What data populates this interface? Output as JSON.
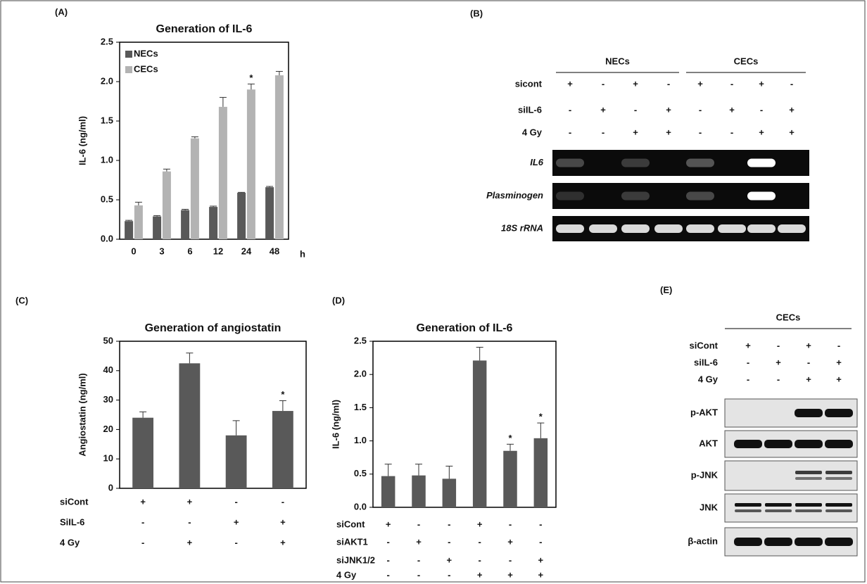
{
  "chart_data": [
    {
      "type": "bar",
      "panel_label": "(A)",
      "title": "Generation of IL-6",
      "y_label": "IL-6 (ng/ml)",
      "x_unit": "h",
      "categories": [
        "0",
        "3",
        "6",
        "12",
        "24",
        "48"
      ],
      "series": [
        {
          "name": "NECs",
          "color": "#595959",
          "values": [
            0.23,
            0.29,
            0.37,
            0.41,
            0.59,
            0.66
          ],
          "errors": [
            0.01,
            0.01,
            0.01,
            0.01,
            0.005,
            0.01
          ],
          "markers": [
            null,
            null,
            null,
            null,
            null,
            null
          ]
        },
        {
          "name": "CECs",
          "color": "#b3b3b3",
          "values": [
            0.43,
            0.86,
            1.28,
            1.68,
            1.9,
            2.08
          ],
          "errors": [
            0.04,
            0.03,
            0.02,
            0.12,
            0.07,
            0.05
          ],
          "markers": [
            null,
            null,
            null,
            null,
            "*",
            null
          ]
        }
      ],
      "ylim": [
        0,
        2.5
      ],
      "yticks": [
        {
          "value": 0,
          "label": "0.0"
        },
        {
          "value": 0.5,
          "label": "0.5"
        },
        {
          "value": 1,
          "label": "1.0"
        },
        {
          "value": 1.5,
          "label": "1.5"
        },
        {
          "value": 2,
          "label": "2.0"
        },
        {
          "value": 2.5,
          "label": "2.5"
        }
      ],
      "legend": "upper left"
    },
    {
      "type": "bar",
      "panel_label": "(C)",
      "title": "Generation of angiostatin",
      "y_label": "Angiostatin (ng/ml)",
      "categories": [
        null,
        null,
        null,
        null
      ],
      "values": [
        24,
        42.5,
        18,
        26.3
      ],
      "errors": [
        2,
        3.5,
        5,
        3.5
      ],
      "markers": [
        null,
        null,
        null,
        "*"
      ],
      "color": "#595959",
      "ylim": [
        0,
        50
      ],
      "yticks": [
        0,
        10,
        20,
        30,
        40,
        50
      ],
      "conditions": [
        {
          "label": "siCont",
          "signs": [
            "+",
            "+",
            "-",
            "-"
          ]
        },
        {
          "label": "SiIL-6",
          "signs": [
            "-",
            "-",
            "+",
            "+"
          ]
        },
        {
          "label": "4 Gy",
          "signs": [
            "-",
            "+",
            "-",
            "+"
          ]
        }
      ]
    },
    {
      "type": "bar",
      "panel_label": "(D)",
      "title": "Generation of IL-6",
      "y_label": "IL-6 (ng/ml)",
      "categories": [
        null,
        null,
        null,
        null,
        null,
        null
      ],
      "values": [
        0.47,
        0.48,
        0.43,
        2.21,
        0.85,
        1.04
      ],
      "errors": [
        0.18,
        0.17,
        0.19,
        0.2,
        0.1,
        0.23
      ],
      "markers": [
        null,
        null,
        null,
        null,
        "*",
        "*"
      ],
      "color": "#595959",
      "ylim": [
        0,
        2.5
      ],
      "yticks": [
        {
          "value": 0,
          "label": "0.0"
        },
        {
          "value": 0.5,
          "label": "0.5"
        },
        {
          "value": 1,
          "label": "1.0"
        },
        {
          "value": 1.5,
          "label": "1.5"
        },
        {
          "value": 2,
          "label": "2.0"
        },
        {
          "value": 2.5,
          "label": "2.5"
        }
      ],
      "conditions": [
        {
          "label": "siCont",
          "signs": [
            "+",
            "-",
            "-",
            "+",
            "-",
            "-"
          ]
        },
        {
          "label": "siAKT1",
          "signs": [
            "-",
            "+",
            "-",
            "-",
            "+",
            "-"
          ]
        },
        {
          "label": "siJNK1/2",
          "signs": [
            "-",
            "-",
            "+",
            "-",
            "-",
            "+"
          ]
        },
        {
          "label": "4 Gy",
          "signs": [
            "-",
            "-",
            "-",
            "+",
            "+",
            "+"
          ]
        }
      ]
    }
  ],
  "gel_b": {
    "panel_label": "(B)",
    "groups": [
      "NECs",
      "CECs"
    ],
    "conditions": [
      {
        "label": "sicont",
        "signs": [
          "+",
          "-",
          "+",
          "-",
          "+",
          "-",
          "+",
          "-"
        ]
      },
      {
        "label": "siIL-6",
        "signs": [
          "-",
          "+",
          "-",
          "+",
          "-",
          "+",
          "-",
          "+"
        ]
      },
      {
        "label": "4 Gy",
        "signs": [
          "-",
          "-",
          "+",
          "+",
          "-",
          "-",
          "+",
          "+"
        ]
      }
    ],
    "bands": [
      "IL6",
      "Plasminogen",
      "18S rRNA"
    ]
  },
  "blot_e": {
    "panel_label": "(E)",
    "group": "CECs",
    "conditions": [
      {
        "label": "siCont",
        "signs": [
          "+",
          "-",
          "+",
          "-"
        ]
      },
      {
        "label": "siIL-6",
        "signs": [
          "-",
          "+",
          "-",
          "+"
        ]
      },
      {
        "label": "4 Gy",
        "signs": [
          "-",
          "-",
          "+",
          "+"
        ]
      }
    ],
    "bands": [
      "p-AKT",
      "AKT",
      "p-JNK",
      "JNK",
      "β-actin"
    ]
  }
}
